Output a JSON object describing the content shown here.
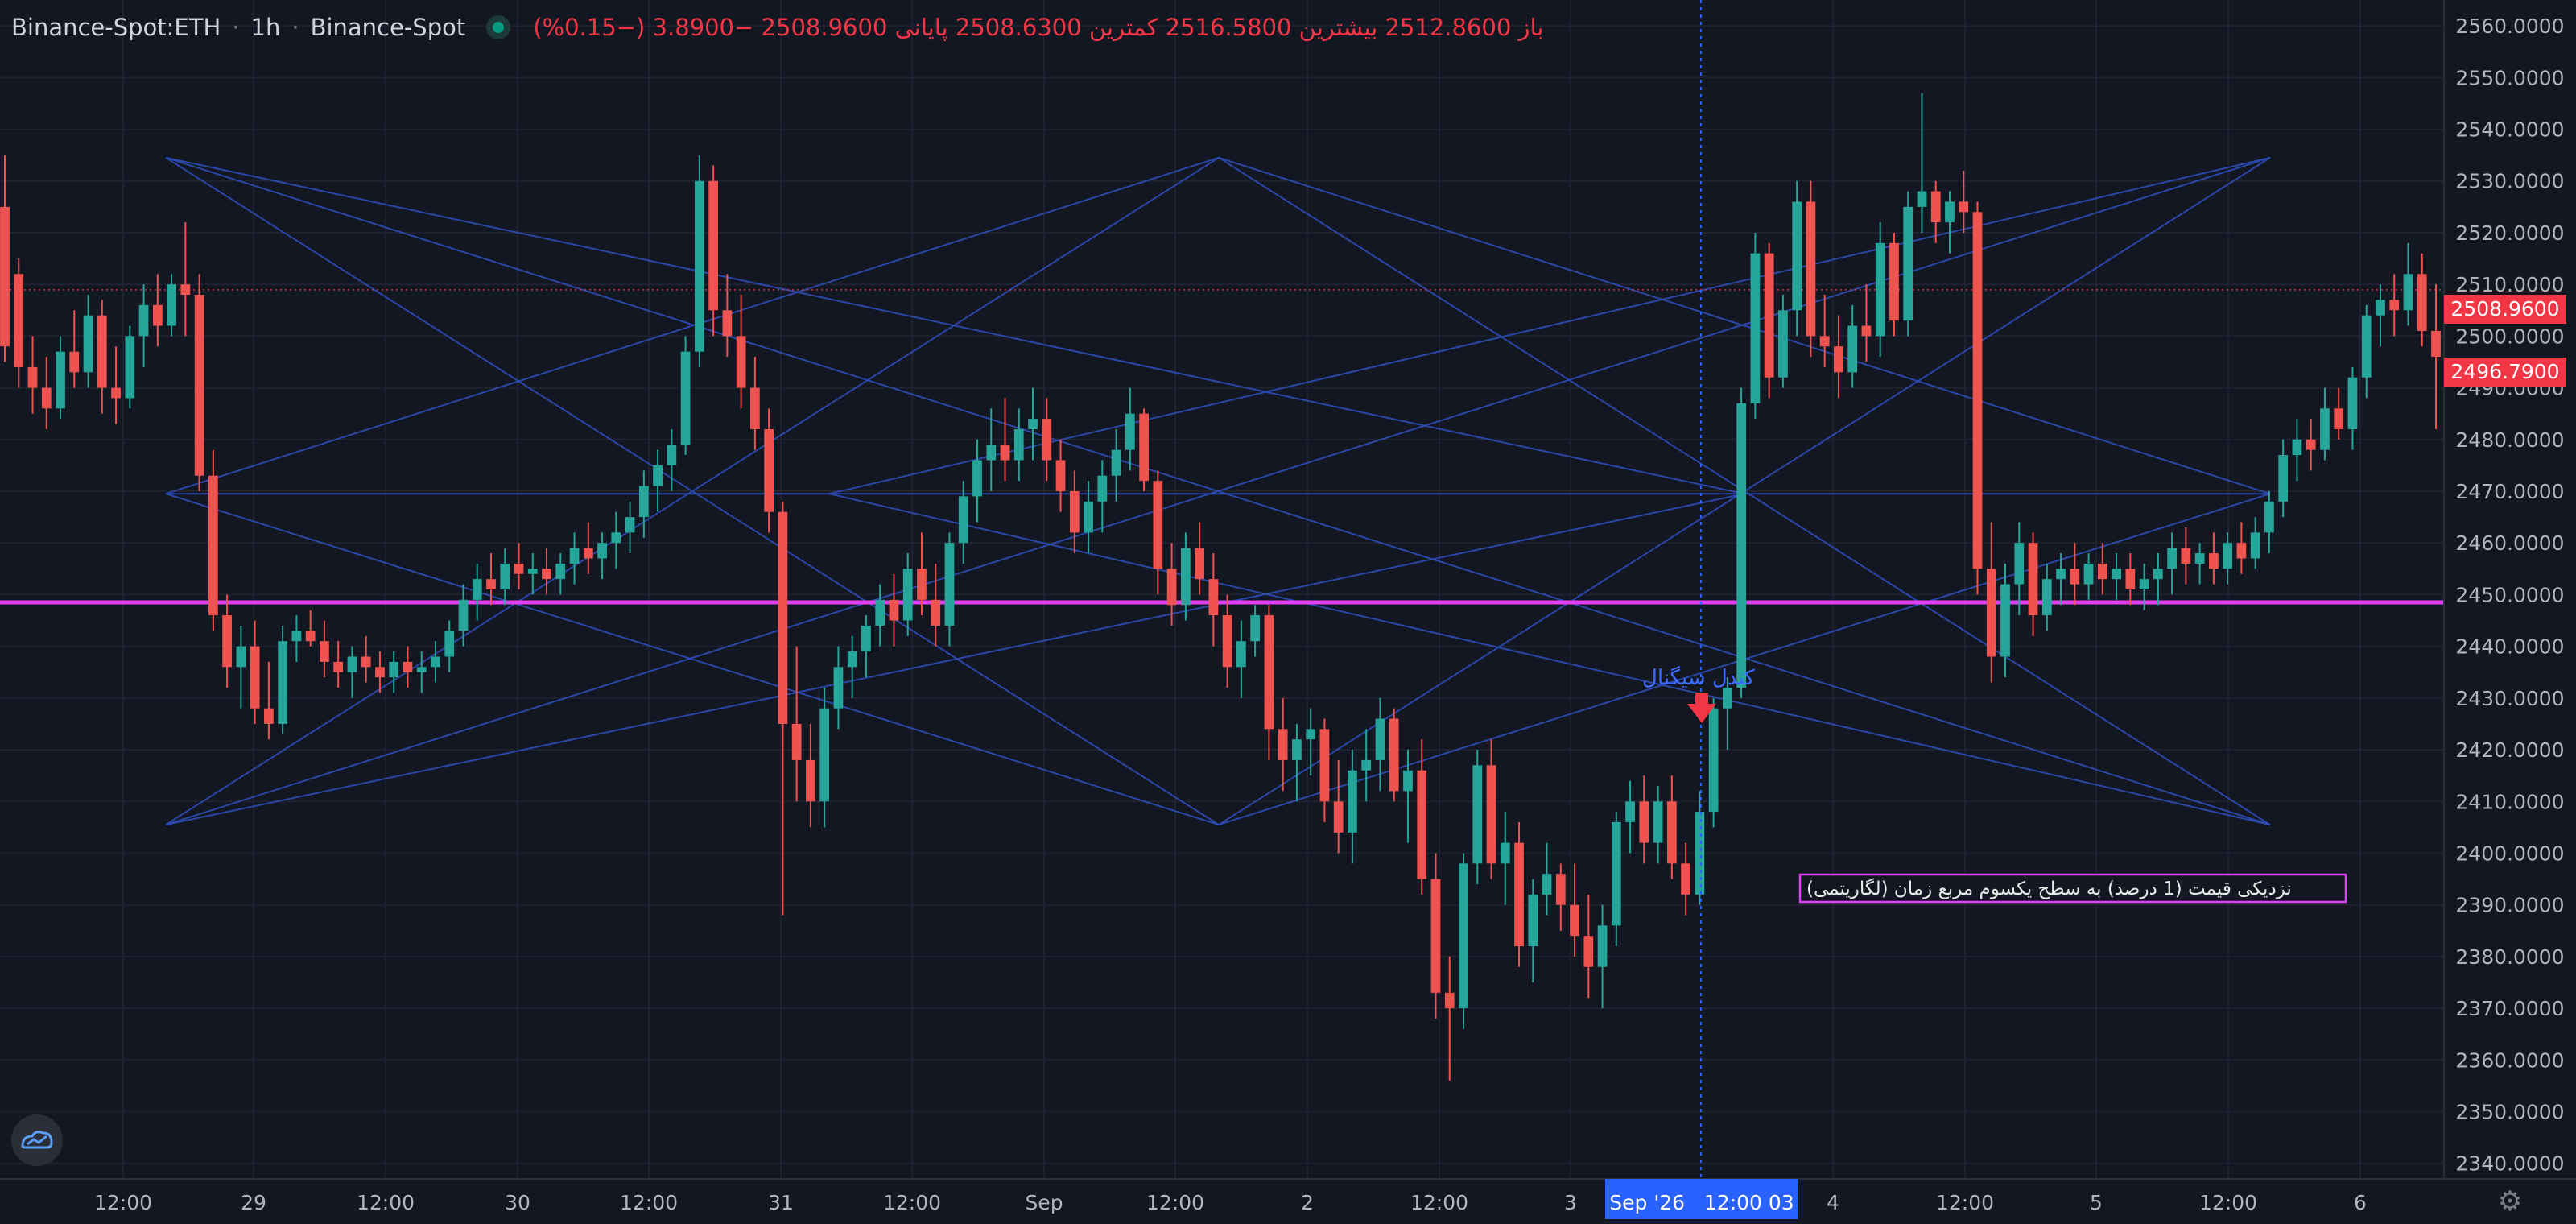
{
  "header": {
    "symbol": "Binance-Spot:ETH",
    "interval": "1h",
    "exchange": "Binance-Spot",
    "ohlc_text": "باز 2512.8600 بیشترین 2516.5800 کمترین 2508.6300 پایانی 2508.9600  −3.8900 (−0.15%)"
  },
  "colors": {
    "background": "#131722",
    "grid": "#1e2230",
    "up": "#26a69a",
    "down": "#ef5350",
    "level_line": "#e040fb",
    "pattern_line": "#2f4fbf",
    "price_label_red": "#f23645",
    "crosshair_label": "#2962ff"
  },
  "chart_data": {
    "type": "candlestick",
    "y_axis": {
      "min": 2337,
      "max": 2565,
      "ticks": [
        "2340.0000",
        "2350.0000",
        "2360.0000",
        "2370.0000",
        "2380.0000",
        "2390.0000",
        "2400.0000",
        "2410.0000",
        "2420.0000",
        "2430.0000",
        "2440.0000",
        "2450.0000",
        "2460.0000",
        "2470.0000",
        "2480.0000",
        "2490.0000",
        "2500.0000",
        "2510.0000",
        "2520.0000",
        "2530.0000",
        "2540.0000",
        "2550.0000",
        "2560.0000"
      ]
    },
    "x_axis": {
      "ticks": [
        "12:00",
        "29",
        "12:00",
        "30",
        "12:00",
        "31",
        "12:00",
        "Sep",
        "12:00",
        "2",
        "12:00",
        "3",
        "4",
        "12:00",
        "5",
        "12:00",
        "6"
      ]
    },
    "crosshair_label": "Sep '26   12:00 03",
    "last_price_label": "2508.9600",
    "second_price_label": "2496.7900",
    "horizontal_level": 2448.5,
    "annotation_signal": "کندل سیگنال",
    "annotation_box": "نزدیکی قیمت (1 درصد) به سطح یکسوم مربع زمان (لگاریتمی)",
    "candles_ohlc": [
      [
        2525,
        2535,
        2495,
        2498
      ],
      [
        2512,
        2515,
        2490,
        2494
      ],
      [
        2494,
        2500,
        2485,
        2490
      ],
      [
        2490,
        2496,
        2482,
        2486
      ],
      [
        2486,
        2500,
        2484,
        2497
      ],
      [
        2497,
        2505,
        2490,
        2493
      ],
      [
        2493,
        2508,
        2490,
        2504
      ],
      [
        2504,
        2507,
        2485,
        2490
      ],
      [
        2490,
        2498,
        2483,
        2488
      ],
      [
        2488,
        2502,
        2486,
        2500
      ],
      [
        2500,
        2510,
        2494,
        2506
      ],
      [
        2506,
        2512,
        2498,
        2502
      ],
      [
        2502,
        2512,
        2500,
        2510
      ],
      [
        2510,
        2522,
        2500,
        2508
      ],
      [
        2508,
        2512,
        2470,
        2473
      ],
      [
        2473,
        2478,
        2443,
        2446
      ],
      [
        2446,
        2450,
        2432,
        2436
      ],
      [
        2436,
        2444,
        2428,
        2440
      ],
      [
        2440,
        2445,
        2425,
        2428
      ],
      [
        2428,
        2437,
        2422,
        2425
      ],
      [
        2425,
        2444,
        2423,
        2441
      ],
      [
        2441,
        2446,
        2437,
        2443
      ],
      [
        2443,
        2447,
        2440,
        2441
      ],
      [
        2441,
        2445,
        2434,
        2437
      ],
      [
        2437,
        2441,
        2432,
        2435
      ],
      [
        2435,
        2440,
        2430,
        2438
      ],
      [
        2438,
        2442,
        2433,
        2436
      ],
      [
        2436,
        2439,
        2431,
        2434
      ],
      [
        2434,
        2439,
        2431,
        2437
      ],
      [
        2437,
        2440,
        2432,
        2435
      ],
      [
        2435,
        2439,
        2431,
        2436
      ],
      [
        2436,
        2441,
        2433,
        2438
      ],
      [
        2438,
        2445,
        2435,
        2443
      ],
      [
        2443,
        2452,
        2440,
        2449
      ],
      [
        2449,
        2456,
        2445,
        2453
      ],
      [
        2453,
        2458,
        2448,
        2451
      ],
      [
        2451,
        2459,
        2448,
        2456
      ],
      [
        2456,
        2460,
        2451,
        2454
      ],
      [
        2454,
        2458,
        2450,
        2455
      ],
      [
        2455,
        2459,
        2450,
        2453
      ],
      [
        2453,
        2458,
        2450,
        2456
      ],
      [
        2456,
        2462,
        2452,
        2459
      ],
      [
        2459,
        2464,
        2454,
        2457
      ],
      [
        2457,
        2462,
        2453,
        2460
      ],
      [
        2460,
        2466,
        2455,
        2462
      ],
      [
        2462,
        2468,
        2458,
        2465
      ],
      [
        2465,
        2474,
        2461,
        2471
      ],
      [
        2471,
        2478,
        2466,
        2475
      ],
      [
        2475,
        2482,
        2470,
        2479
      ],
      [
        2479,
        2500,
        2477,
        2497
      ],
      [
        2497,
        2535,
        2494,
        2530
      ],
      [
        2530,
        2533,
        2500,
        2505
      ],
      [
        2505,
        2512,
        2496,
        2500
      ],
      [
        2500,
        2508,
        2486,
        2490
      ],
      [
        2490,
        2496,
        2478,
        2482
      ],
      [
        2482,
        2486,
        2462,
        2466
      ],
      [
        2466,
        2468,
        2388,
        2425
      ],
      [
        2425,
        2440,
        2410,
        2418
      ],
      [
        2418,
        2425,
        2405,
        2410
      ],
      [
        2410,
        2432,
        2405,
        2428
      ],
      [
        2428,
        2440,
        2424,
        2436
      ],
      [
        2436,
        2442,
        2430,
        2439
      ],
      [
        2439,
        2446,
        2434,
        2444
      ],
      [
        2444,
        2452,
        2440,
        2449
      ],
      [
        2449,
        2454,
        2440,
        2445
      ],
      [
        2445,
        2458,
        2442,
        2455
      ],
      [
        2455,
        2462,
        2446,
        2449
      ],
      [
        2449,
        2456,
        2440,
        2444
      ],
      [
        2444,
        2462,
        2440,
        2460
      ],
      [
        2460,
        2472,
        2456,
        2469
      ],
      [
        2469,
        2480,
        2464,
        2476
      ],
      [
        2476,
        2486,
        2470,
        2479
      ],
      [
        2479,
        2488,
        2472,
        2476
      ],
      [
        2476,
        2486,
        2472,
        2482
      ],
      [
        2482,
        2490,
        2476,
        2484
      ],
      [
        2484,
        2488,
        2472,
        2476
      ],
      [
        2476,
        2480,
        2466,
        2470
      ],
      [
        2470,
        2474,
        2458,
        2462
      ],
      [
        2462,
        2472,
        2458,
        2468
      ],
      [
        2468,
        2476,
        2462,
        2473
      ],
      [
        2473,
        2482,
        2468,
        2478
      ],
      [
        2478,
        2490,
        2474,
        2485
      ],
      [
        2485,
        2486,
        2470,
        2472
      ],
      [
        2472,
        2474,
        2450,
        2455
      ],
      [
        2455,
        2460,
        2444,
        2448
      ],
      [
        2448,
        2462,
        2445,
        2459
      ],
      [
        2459,
        2464,
        2450,
        2453
      ],
      [
        2453,
        2458,
        2440,
        2446
      ],
      [
        2446,
        2450,
        2432,
        2436
      ],
      [
        2436,
        2445,
        2430,
        2441
      ],
      [
        2441,
        2448,
        2438,
        2446
      ],
      [
        2446,
        2448,
        2418,
        2424
      ],
      [
        2424,
        2430,
        2412,
        2418
      ],
      [
        2418,
        2425,
        2410,
        2422
      ],
      [
        2422,
        2428,
        2415,
        2424
      ],
      [
        2424,
        2426,
        2406,
        2410
      ],
      [
        2410,
        2418,
        2400,
        2404
      ],
      [
        2404,
        2420,
        2398,
        2416
      ],
      [
        2416,
        2424,
        2410,
        2418
      ],
      [
        2418,
        2430,
        2412,
        2426
      ],
      [
        2426,
        2428,
        2410,
        2412
      ],
      [
        2412,
        2420,
        2402,
        2416
      ],
      [
        2416,
        2422,
        2392,
        2395
      ],
      [
        2395,
        2400,
        2368,
        2373
      ],
      [
        2373,
        2380,
        2356,
        2370
      ],
      [
        2370,
        2400,
        2366,
        2398
      ],
      [
        2398,
        2420,
        2394,
        2417
      ],
      [
        2417,
        2422,
        2395,
        2398
      ],
      [
        2398,
        2408,
        2390,
        2402
      ],
      [
        2402,
        2406,
        2378,
        2382
      ],
      [
        2382,
        2395,
        2375,
        2392
      ],
      [
        2392,
        2402,
        2388,
        2396
      ],
      [
        2396,
        2398,
        2385,
        2390
      ],
      [
        2390,
        2398,
        2380,
        2384
      ],
      [
        2384,
        2392,
        2372,
        2378
      ],
      [
        2378,
        2390,
        2370,
        2386
      ],
      [
        2386,
        2408,
        2382,
        2406
      ],
      [
        2406,
        2414,
        2400,
        2410
      ],
      [
        2410,
        2415,
        2398,
        2402
      ],
      [
        2402,
        2413,
        2398,
        2410
      ],
      [
        2410,
        2415,
        2395,
        2398
      ],
      [
        2398,
        2402,
        2388,
        2392
      ],
      [
        2392,
        2412,
        2390,
        2408
      ],
      [
        2408,
        2430,
        2405,
        2428
      ],
      [
        2428,
        2434,
        2420,
        2432
      ],
      [
        2432,
        2490,
        2430,
        2487
      ],
      [
        2487,
        2520,
        2484,
        2516
      ],
      [
        2516,
        2518,
        2488,
        2492
      ],
      [
        2492,
        2508,
        2490,
        2505
      ],
      [
        2505,
        2530,
        2500,
        2526
      ],
      [
        2526,
        2530,
        2496,
        2500
      ],
      [
        2500,
        2508,
        2494,
        2498
      ],
      [
        2498,
        2504,
        2488,
        2493
      ],
      [
        2493,
        2506,
        2490,
        2502
      ],
      [
        2502,
        2510,
        2495,
        2500
      ],
      [
        2500,
        2522,
        2496,
        2518
      ],
      [
        2518,
        2520,
        2500,
        2503
      ],
      [
        2503,
        2528,
        2500,
        2525
      ],
      [
        2525,
        2547,
        2520,
        2528
      ],
      [
        2528,
        2530,
        2518,
        2522
      ],
      [
        2522,
        2528,
        2516,
        2526
      ],
      [
        2526,
        2532,
        2520,
        2524
      ],
      [
        2524,
        2526,
        2450,
        2455
      ],
      [
        2455,
        2464,
        2433,
        2438
      ],
      [
        2438,
        2456,
        2434,
        2452
      ],
      [
        2452,
        2464,
        2446,
        2460
      ],
      [
        2460,
        2462,
        2442,
        2446
      ],
      [
        2446,
        2456,
        2443,
        2453
      ],
      [
        2453,
        2458,
        2448,
        2455
      ],
      [
        2455,
        2460,
        2448,
        2452
      ],
      [
        2452,
        2458,
        2449,
        2456
      ],
      [
        2456,
        2460,
        2450,
        2453
      ],
      [
        2453,
        2458,
        2449,
        2455
      ],
      [
        2455,
        2458,
        2448,
        2451
      ],
      [
        2451,
        2456,
        2447,
        2453
      ],
      [
        2453,
        2458,
        2448,
        2455
      ],
      [
        2455,
        2462,
        2450,
        2459
      ],
      [
        2459,
        2463,
        2452,
        2456
      ],
      [
        2456,
        2460,
        2452,
        2458
      ],
      [
        2458,
        2462,
        2452,
        2455
      ],
      [
        2455,
        2462,
        2452,
        2460
      ],
      [
        2460,
        2464,
        2454,
        2457
      ],
      [
        2457,
        2465,
        2455,
        2462
      ],
      [
        2462,
        2470,
        2458,
        2468
      ],
      [
        2468,
        2480,
        2465,
        2477
      ],
      [
        2477,
        2484,
        2472,
        2480
      ],
      [
        2480,
        2484,
        2474,
        2478
      ],
      [
        2478,
        2490,
        2476,
        2486
      ],
      [
        2486,
        2490,
        2480,
        2482
      ],
      [
        2482,
        2494,
        2478,
        2492
      ],
      [
        2492,
        2506,
        2488,
        2504
      ],
      [
        2504,
        2510,
        2498,
        2507
      ],
      [
        2507,
        2512,
        2500,
        2505
      ],
      [
        2505,
        2518,
        2502,
        2512
      ],
      [
        2512,
        2516,
        2498,
        2501
      ],
      [
        2501,
        2510,
        2482,
        2496
      ]
    ]
  }
}
